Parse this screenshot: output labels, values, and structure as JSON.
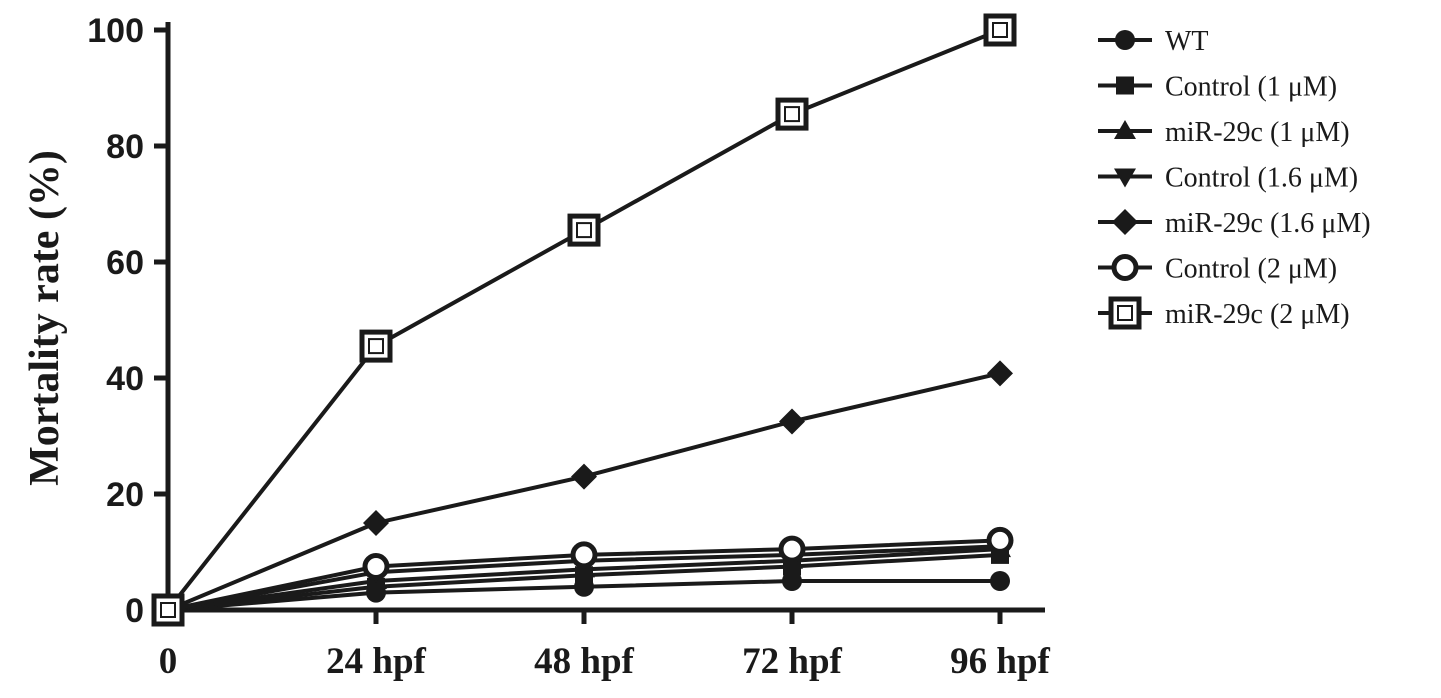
{
  "chart_data": {
    "type": "line",
    "title": "",
    "xlabel": "",
    "ylabel": "Mortality rate (%)",
    "categories": [
      "0",
      "24 hpf",
      "48 hpf",
      "72 hpf",
      "96 hpf"
    ],
    "yticks": [
      "0",
      "20",
      "40",
      "60",
      "80",
      "100"
    ],
    "ylim": [
      0,
      100
    ],
    "grid": false,
    "legend_position": "right",
    "line_color": "#1a1a1a",
    "series": [
      {
        "name": "WT",
        "marker": "circle-filled",
        "values": [
          0,
          3,
          4,
          5,
          5
        ]
      },
      {
        "name": "Control (1 μM)",
        "marker": "square-filled",
        "values": [
          0,
          4,
          6,
          7.5,
          9.5
        ]
      },
      {
        "name": "miR-29c (1 μM)",
        "marker": "triangle-up-filled",
        "values": [
          0,
          5,
          7,
          8.5,
          10.5
        ]
      },
      {
        "name": "Control (1.6 μM)",
        "marker": "triangle-down-filled",
        "values": [
          0,
          6.5,
          8.5,
          9.5,
          11
        ]
      },
      {
        "name": "miR-29c (1.6 μM)",
        "marker": "diamond-filled",
        "values": [
          0,
          15,
          23,
          32.5,
          40.8
        ]
      },
      {
        "name": "Control (2 μM)",
        "marker": "circle-open",
        "values": [
          0,
          7.5,
          9.5,
          10.5,
          12
        ]
      },
      {
        "name": "miR-29c (2 μM)",
        "marker": "square-open",
        "values": [
          0,
          45.5,
          65.5,
          85.5,
          100
        ]
      }
    ]
  }
}
